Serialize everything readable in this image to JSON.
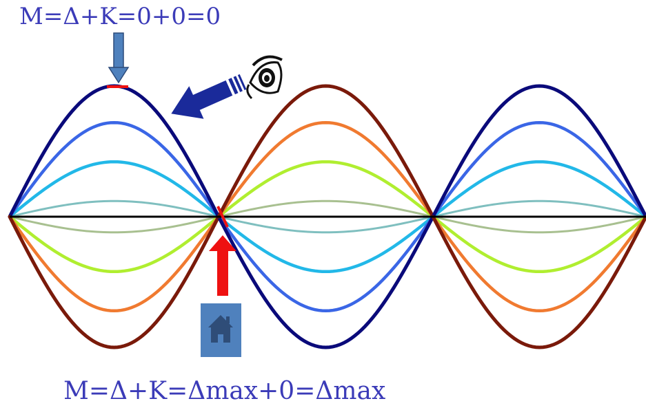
{
  "formulas": {
    "top": "M=Δ+K=0+0=0",
    "bottom": "M=Δ+K=Δmax+0=Δmax"
  },
  "wave": {
    "colors_top_lobe_outer_to_inner": [
      "#0a0a7a",
      "#3a66e6",
      "#22b8e8",
      "#7fbfbf"
    ],
    "colors_bottom_lobe_outer_to_inner": [
      "#7a1a0a",
      "#f07a30",
      "#b0ee30",
      "#a8c090"
    ],
    "axis_color": "#000000",
    "amplitude_levels": [
      1.0,
      0.72,
      0.42,
      0.12
    ]
  },
  "markers": {
    "observer_icon": "eye-icon",
    "home_icon": "house-icon",
    "red_arrow_color": "#ee1111",
    "blue_arrow_color": "#1a2a9a",
    "down_arrow_color": "#4f81bd",
    "house_box_color": "#4f81bd"
  }
}
